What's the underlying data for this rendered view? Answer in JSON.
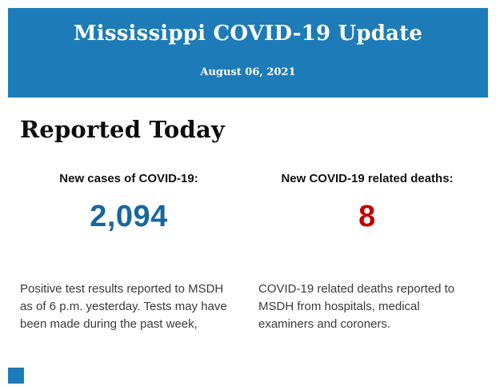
{
  "header": {
    "title": "Mississippi COVID-19 Update",
    "date": "August 06, 2021",
    "background_color": "#1d7cb8",
    "text_color": "#ffffff"
  },
  "main": {
    "section_title": "Reported Today",
    "stats": [
      {
        "label": "New cases of COVID-19:",
        "value": "2,094",
        "value_color": "#17679e",
        "description": "Positive test results reported to MSDH as of 6 p.m. yesterday. Tests may have been made during the past week,"
      },
      {
        "label": "New COVID-19 related deaths:",
        "value": "8",
        "value_color": "#c00000",
        "description": "COVID-19 related deaths reported to MSDH from hospitals, medical examiners and coroners."
      }
    ]
  },
  "footer": {
    "accent_color": "#1d7cb8"
  }
}
